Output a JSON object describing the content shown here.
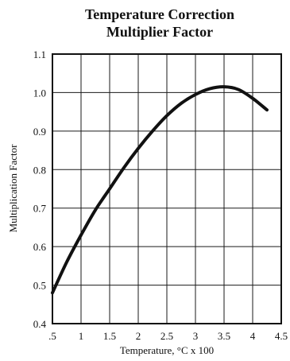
{
  "chart_data": {
    "type": "line",
    "title_lines": [
      "Temperature Correction",
      "Multiplier Factor"
    ],
    "xlabel": "Temperature, °C x 100",
    "ylabel": "Multiplication Factor",
    "xlim": [
      0.5,
      4.5
    ],
    "ylim": [
      0.4,
      1.1
    ],
    "x_ticks": [
      0.5,
      1,
      1.5,
      2,
      2.5,
      3,
      3.5,
      4,
      4.5
    ],
    "x_tick_labels": [
      ".5",
      "1",
      "1.5",
      "2",
      "2.5",
      "3",
      "3.5",
      "4",
      "4.5"
    ],
    "y_ticks": [
      0.4,
      0.5,
      0.6,
      0.7,
      0.8,
      0.9,
      1.0,
      1.1
    ],
    "y_tick_labels": [
      "0.4",
      "0.5",
      "0.6",
      "0.7",
      "0.8",
      "0.9",
      "1.0",
      "1.1"
    ],
    "grid": true,
    "series": [
      {
        "x": [
          0.5,
          0.75,
          1.0,
          1.25,
          1.5,
          1.75,
          2.0,
          2.25,
          2.5,
          2.75,
          3.0,
          3.25,
          3.5,
          3.75,
          4.0,
          4.25
        ],
        "y": [
          0.48,
          0.56,
          0.63,
          0.695,
          0.75,
          0.805,
          0.855,
          0.9,
          0.94,
          0.972,
          0.995,
          1.01,
          1.015,
          1.008,
          0.985,
          0.955
        ],
        "color": "#111111"
      }
    ]
  }
}
